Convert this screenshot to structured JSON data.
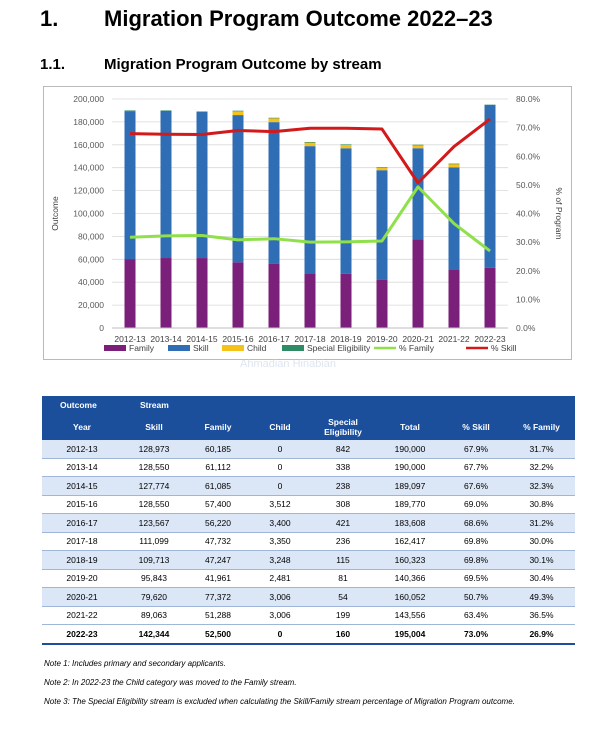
{
  "heading1": {
    "number": "1.",
    "title": "Migration Program Outcome 2022–23"
  },
  "heading2": {
    "number": "1.1.",
    "title": "Migration Program Outcome by stream"
  },
  "chart_data": {
    "type": "bar",
    "stacked": true,
    "categories": [
      "2012-13",
      "2013-14",
      "2014-15",
      "2015-16",
      "2016-17",
      "2017-18",
      "2018-19",
      "2019-20",
      "2020-21",
      "2021-22",
      "2022-23"
    ],
    "series": [
      {
        "name": "Family",
        "color": "#7a1f7a",
        "values": [
          60185,
          61112,
          61085,
          57400,
          56220,
          47732,
          47247,
          41961,
          77372,
          51288,
          52500
        ]
      },
      {
        "name": "Skill",
        "color": "#2f6db5",
        "values": [
          128973,
          128550,
          127774,
          128550,
          123567,
          111099,
          109713,
          95843,
          79620,
          89063,
          142344
        ]
      },
      {
        "name": "Child",
        "color": "#f5c21a",
        "values": [
          0,
          0,
          0,
          3512,
          3400,
          3350,
          3248,
          2481,
          3006,
          3006,
          0
        ]
      },
      {
        "name": "Special Eligibility",
        "color": "#2e8b63",
        "values": [
          842,
          338,
          238,
          308,
          421,
          236,
          115,
          81,
          54,
          199,
          160
        ]
      }
    ],
    "lines": [
      {
        "name": "% Family",
        "color": "#8fe04a",
        "values": [
          31.7,
          32.2,
          32.3,
          30.8,
          31.2,
          30.0,
          30.1,
          30.4,
          49.3,
          36.5,
          26.9
        ]
      },
      {
        "name": "% Skill",
        "color": "#d21a1a",
        "values": [
          67.9,
          67.7,
          67.6,
          69.0,
          68.6,
          69.8,
          69.8,
          69.5,
          50.7,
          63.4,
          73.0
        ]
      }
    ],
    "ylabel": "Outcome",
    "y2label": "% of Program",
    "ylim": [
      0,
      200000
    ],
    "y2lim": [
      0,
      80
    ],
    "yticks": [
      "0",
      "20,000",
      "40,000",
      "60,000",
      "80,000",
      "100,000",
      "120,000",
      "140,000",
      "160,000",
      "180,000",
      "200,000"
    ],
    "y2ticks": [
      "0.0%",
      "10.0%",
      "20.0%",
      "30.0%",
      "40.0%",
      "50.0%",
      "60.0%",
      "70.0%",
      "80.0%"
    ],
    "legend_position": "bottom",
    "grid": true
  },
  "watermark": "Ahmadian Hinabian",
  "table": {
    "group_headers": [
      "Outcome",
      "Stream"
    ],
    "columns": [
      "Year",
      "Skill",
      "Family",
      "Child",
      "Special\nEligibility",
      "Total",
      "% Skill",
      "% Family"
    ],
    "rows": [
      [
        "2012-13",
        "128,973",
        "60,185",
        "0",
        "842",
        "190,000",
        "67.9%",
        "31.7%"
      ],
      [
        "2013-14",
        "128,550",
        "61,112",
        "0",
        "338",
        "190,000",
        "67.7%",
        "32.2%"
      ],
      [
        "2014-15",
        "127,774",
        "61,085",
        "0",
        "238",
        "189,097",
        "67.6%",
        "32.3%"
      ],
      [
        "2015-16",
        "128,550",
        "57,400",
        "3,512",
        "308",
        "189,770",
        "69.0%",
        "30.8%"
      ],
      [
        "2016-17",
        "123,567",
        "56,220",
        "3,400",
        "421",
        "183,608",
        "68.6%",
        "31.2%"
      ],
      [
        "2017-18",
        "111,099",
        "47,732",
        "3,350",
        "236",
        "162,417",
        "69.8%",
        "30.0%"
      ],
      [
        "2018-19",
        "109,713",
        "47,247",
        "3,248",
        "115",
        "160,323",
        "69.8%",
        "30.1%"
      ],
      [
        "2019-20",
        "95,843",
        "41,961",
        "2,481",
        "81",
        "140,366",
        "69.5%",
        "30.4%"
      ],
      [
        "2020-21",
        "79,620",
        "77,372",
        "3,006",
        "54",
        "160,052",
        "50.7%",
        "49.3%"
      ],
      [
        "2021-22",
        "89,063",
        "51,288",
        "3,006",
        "199",
        "143,556",
        "63.4%",
        "36.5%"
      ],
      [
        "2022-23",
        "142,344",
        "52,500",
        "0",
        "160",
        "195,004",
        "73.0%",
        "26.9%"
      ]
    ]
  },
  "notes": [
    "Note 1: Includes primary and secondary applicants.",
    "Note 2: In 2022-23 the Child category was moved to the Family stream.",
    "Note 3: The Special Eligibility stream is excluded when calculating the Skill/Family stream percentage of Migration Program outcome."
  ]
}
